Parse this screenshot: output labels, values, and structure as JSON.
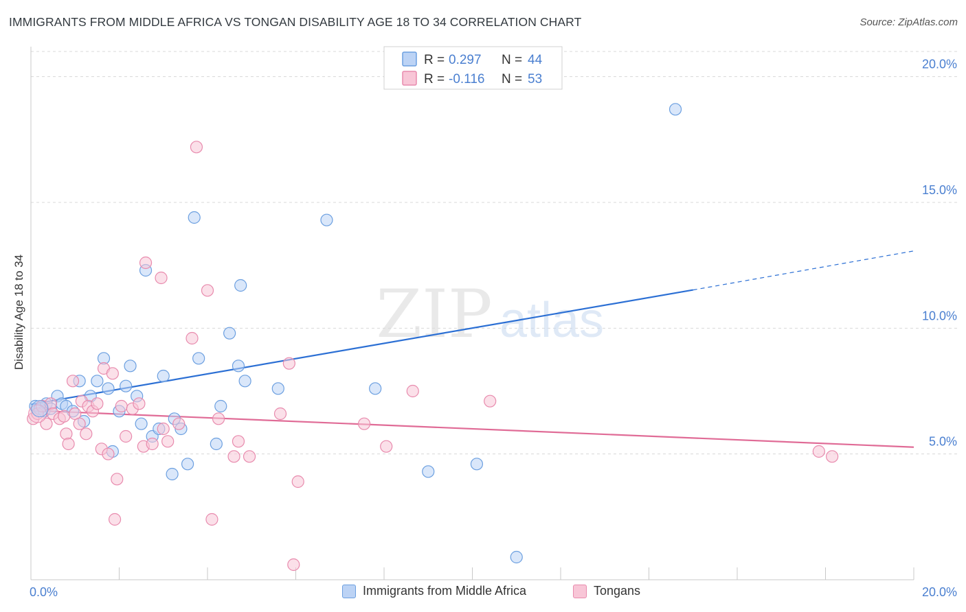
{
  "title": "IMMIGRANTS FROM MIDDLE AFRICA VS TONGAN DISABILITY AGE 18 TO 34 CORRELATION CHART",
  "source": "Source: ZipAtlas.com",
  "watermark": {
    "zip": "ZIP",
    "atlas": "atlas"
  },
  "colors": {
    "blue": "#6b9fe0",
    "blue_fill": "#bcd3f5",
    "blue_line": "#2b6fd4",
    "pink": "#e88aad",
    "pink_fill": "#f8c6d7",
    "pink_line": "#e06b96",
    "axis_text": "#4a7fd0",
    "grid": "#d8d8d8"
  },
  "legend_top": [
    {
      "r_label": "R =",
      "r_value": "0.297",
      "n_label": "N =",
      "n_value": "44"
    },
    {
      "r_label": "R =",
      "r_value": "-0.116",
      "n_label": "N =",
      "n_value": "53"
    }
  ],
  "legend_bottom": [
    "Immigrants from Middle Africa",
    "Tongans"
  ],
  "chart_data": {
    "type": "scatter",
    "title": "IMMIGRANTS FROM MIDDLE AFRICA VS TONGAN DISABILITY AGE 18 TO 34 CORRELATION CHART",
    "ylabel": "Disability Age 18 to 34",
    "xlabel": "",
    "xlim": [
      0,
      20
    ],
    "ylim": [
      0,
      21
    ],
    "x_tick_labels": [
      "0.0%",
      "20.0%"
    ],
    "y_ticks": [
      5,
      10,
      15,
      20
    ],
    "y_tick_labels": [
      "5.0%",
      "10.0%",
      "15.0%",
      "20.0%"
    ],
    "grid": true,
    "legend_position": "top-center",
    "series": [
      {
        "name": "Immigrants from Middle Africa",
        "color": "#6b9fe0",
        "points": [
          [
            0.1,
            6.9
          ],
          [
            0.2,
            6.8
          ],
          [
            0.3,
            6.7
          ],
          [
            0.35,
            7.0
          ],
          [
            0.45,
            6.8
          ],
          [
            0.6,
            7.3
          ],
          [
            0.7,
            7.0
          ],
          [
            0.8,
            6.9
          ],
          [
            0.95,
            6.7
          ],
          [
            1.1,
            7.9
          ],
          [
            1.2,
            6.3
          ],
          [
            1.35,
            7.3
          ],
          [
            1.5,
            7.9
          ],
          [
            1.65,
            8.8
          ],
          [
            1.75,
            7.6
          ],
          [
            1.85,
            5.1
          ],
          [
            2.0,
            6.7
          ],
          [
            2.15,
            7.7
          ],
          [
            2.25,
            8.5
          ],
          [
            2.4,
            7.3
          ],
          [
            2.5,
            6.2
          ],
          [
            2.6,
            12.3
          ],
          [
            2.75,
            5.7
          ],
          [
            2.9,
            6.0
          ],
          [
            3.0,
            8.1
          ],
          [
            3.2,
            4.2
          ],
          [
            3.25,
            6.4
          ],
          [
            3.4,
            6.0
          ],
          [
            3.55,
            4.6
          ],
          [
            3.7,
            14.4
          ],
          [
            3.8,
            8.8
          ],
          [
            4.2,
            5.4
          ],
          [
            4.3,
            6.9
          ],
          [
            4.5,
            9.8
          ],
          [
            4.7,
            8.5
          ],
          [
            4.75,
            11.7
          ],
          [
            4.85,
            7.9
          ],
          [
            5.6,
            7.6
          ],
          [
            6.7,
            14.3
          ],
          [
            7.8,
            7.6
          ],
          [
            9.0,
            4.3
          ],
          [
            10.1,
            4.6
          ],
          [
            11.0,
            0.9
          ],
          [
            14.6,
            18.7
          ]
        ]
      },
      {
        "name": "Tongans",
        "color": "#e88aad",
        "points": [
          [
            0.05,
            6.4
          ],
          [
            0.15,
            6.6
          ],
          [
            0.25,
            6.9
          ],
          [
            0.35,
            6.2
          ],
          [
            0.45,
            7.0
          ],
          [
            0.5,
            6.6
          ],
          [
            0.65,
            6.4
          ],
          [
            0.75,
            6.5
          ],
          [
            0.8,
            5.8
          ],
          [
            0.85,
            5.4
          ],
          [
            0.95,
            7.9
          ],
          [
            1.0,
            6.6
          ],
          [
            1.1,
            6.2
          ],
          [
            1.15,
            7.1
          ],
          [
            1.25,
            5.8
          ],
          [
            1.3,
            6.9
          ],
          [
            1.4,
            6.7
          ],
          [
            1.5,
            7.0
          ],
          [
            1.6,
            5.2
          ],
          [
            1.65,
            8.4
          ],
          [
            1.75,
            5.0
          ],
          [
            1.85,
            8.2
          ],
          [
            1.9,
            2.4
          ],
          [
            1.95,
            4.0
          ],
          [
            2.05,
            6.9
          ],
          [
            2.15,
            5.7
          ],
          [
            2.3,
            6.8
          ],
          [
            2.45,
            7.0
          ],
          [
            2.55,
            5.3
          ],
          [
            2.6,
            12.6
          ],
          [
            2.75,
            5.4
          ],
          [
            2.95,
            12.0
          ],
          [
            3.0,
            6.0
          ],
          [
            3.1,
            5.5
          ],
          [
            3.35,
            6.2
          ],
          [
            3.65,
            9.6
          ],
          [
            3.75,
            17.2
          ],
          [
            4.0,
            11.5
          ],
          [
            4.1,
            2.4
          ],
          [
            4.25,
            6.4
          ],
          [
            4.6,
            4.9
          ],
          [
            4.7,
            5.5
          ],
          [
            4.95,
            4.9
          ],
          [
            5.65,
            6.6
          ],
          [
            5.85,
            8.6
          ],
          [
            6.05,
            3.9
          ],
          [
            5.95,
            0.6
          ],
          [
            7.55,
            6.2
          ],
          [
            8.05,
            5.3
          ],
          [
            8.65,
            7.5
          ],
          [
            10.4,
            7.1
          ],
          [
            17.85,
            5.1
          ],
          [
            18.15,
            4.9
          ]
        ]
      }
    ],
    "trendlines": [
      {
        "series": "Immigrants from Middle Africa",
        "x_start": 0,
        "y_start": 6.97,
        "x_solid_end": 15.0,
        "y_solid_end": 11.52,
        "x_end": 20,
        "y_end": 13.07
      },
      {
        "series": "Tongans",
        "x_start": 0,
        "y_start": 6.73,
        "x_end": 20,
        "y_end": 5.27
      }
    ]
  }
}
